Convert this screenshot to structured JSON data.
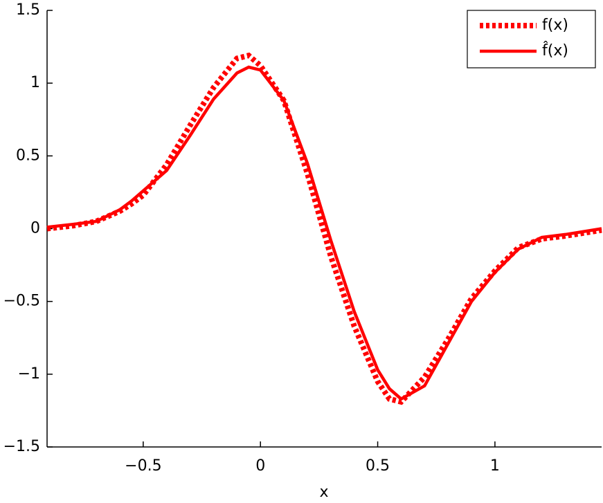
{
  "chart_data": {
    "type": "line",
    "xlabel": "x",
    "x": [
      -0.91,
      -0.8,
      -0.7,
      -0.6,
      -0.55,
      -0.5,
      -0.4,
      -0.3,
      -0.2,
      -0.1,
      -0.05,
      0,
      0.1,
      0.2,
      0.3,
      0.4,
      0.5,
      0.55,
      0.6,
      0.7,
      0.8,
      0.9,
      1.0,
      1.1,
      1.2,
      1.3,
      1.455
    ],
    "series": [
      {
        "name": "f(x)",
        "color": "#ff0000",
        "style": "dotted",
        "values": [
          0.0,
          0.02,
          0.05,
          0.12,
          0.17,
          0.23,
          0.44,
          0.71,
          0.97,
          1.17,
          1.19,
          1.12,
          0.88,
          0.38,
          -0.19,
          -0.67,
          -1.05,
          -1.17,
          -1.19,
          -1.02,
          -0.76,
          -0.48,
          -0.29,
          -0.13,
          -0.07,
          -0.05,
          -0.01
        ]
      },
      {
        "name": "f̂(x)",
        "color": "#ff0000",
        "style": "solid",
        "values": [
          0.01,
          0.03,
          0.05,
          0.13,
          0.19,
          0.26,
          0.4,
          0.64,
          0.89,
          1.07,
          1.11,
          1.09,
          0.88,
          0.45,
          -0.08,
          -0.57,
          -0.97,
          -1.1,
          -1.17,
          -1.08,
          -0.79,
          -0.5,
          -0.3,
          -0.14,
          -0.06,
          -0.04,
          0.0
        ]
      }
    ],
    "xlim": [
      -0.91,
      1.455
    ],
    "ylim": [
      -1.5,
      1.5
    ],
    "xticks": [
      {
        "value": -0.5,
        "label": "−0.5"
      },
      0,
      0.5,
      1
    ],
    "yticks": [
      {
        "value": -1.5,
        "label": "−1.5"
      },
      {
        "value": -1,
        "label": "−1"
      },
      {
        "value": -0.5,
        "label": "−0.5"
      },
      0,
      0.5,
      1,
      1.5
    ],
    "legend": "upper right"
  }
}
